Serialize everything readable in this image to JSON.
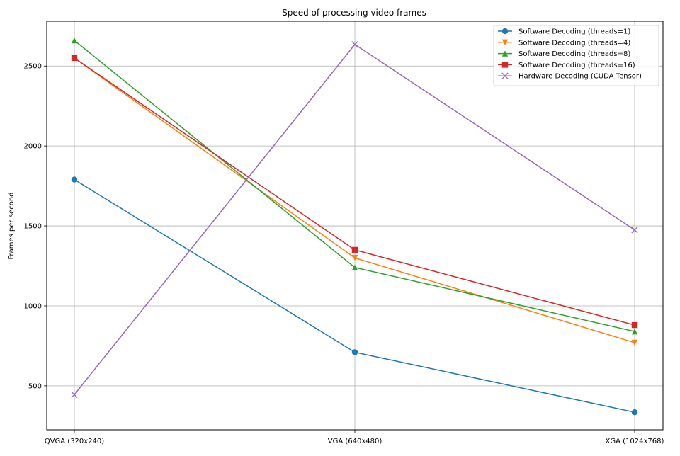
{
  "chart_data": {
    "type": "line",
    "title": "Speed of processing video frames",
    "xlabel": "",
    "ylabel": "Frames per second",
    "categories": [
      "QVGA (320x240)",
      "VGA (640x480)",
      "XGA (1024x768)"
    ],
    "ylim": [
      225,
      2780
    ],
    "yticks": [
      500,
      1000,
      1500,
      2000,
      2500
    ],
    "grid": true,
    "legend_position": "top-right",
    "series": [
      {
        "name": "Software Decoding (threads=1)",
        "values": [
          1790,
          710,
          335
        ],
        "color": "#1f77b4",
        "marker": "circle"
      },
      {
        "name": "Software Decoding (threads=4)",
        "values": [
          2550,
          1300,
          770
        ],
        "color": "#ff7f0e",
        "marker": "triangle-down"
      },
      {
        "name": "Software Decoding (threads=8)",
        "values": [
          2660,
          1240,
          840
        ],
        "color": "#2ca02c",
        "marker": "triangle-up"
      },
      {
        "name": "Software Decoding (threads=16)",
        "values": [
          2550,
          1350,
          880
        ],
        "color": "#d62728",
        "marker": "square"
      },
      {
        "name": "Hardware Decoding (CUDA Tensor)",
        "values": [
          445,
          2635,
          1475
        ],
        "color": "#9467bd",
        "marker": "x"
      }
    ]
  }
}
